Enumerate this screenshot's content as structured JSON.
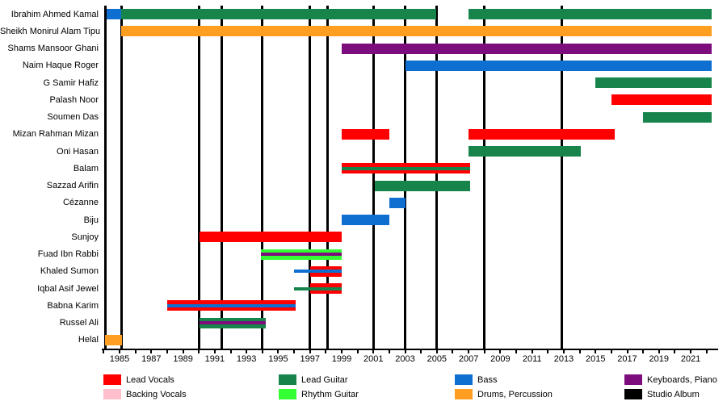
{
  "chart_data": {
    "type": "timeline",
    "title": "Band members timeline (Gantt-style, Wikipedia EasyTimeline format)",
    "x_axis": {
      "start_year": 1984,
      "end_year": 2022.5,
      "minor_tick_interval_years": 1,
      "minor_tick_first": 1984,
      "minor_tick_last": 2022,
      "label_first": 1985,
      "label_last": 2021,
      "label_interval_years": 2,
      "tick_labels": [
        "1985",
        "1987",
        "1989",
        "1991",
        "1993",
        "1995",
        "1997",
        "1999",
        "2001",
        "2003",
        "2005",
        "2007",
        "2009",
        "2011",
        "2013",
        "2015",
        "2017",
        "2019",
        "2021"
      ]
    },
    "colors": {
      "Lead Vocals": "#ff0000",
      "Backing Vocals": "#ffc0cb",
      "Lead Guitar": "#17854b",
      "Rhythm Guitar": "#33ff33",
      "Bass": "#0e6fd0",
      "Drums, Percussion": "#ff9e20",
      "Keyboards, Piano": "#7d0c7d",
      "Studio Album": "#000000"
    },
    "rows": [
      {
        "name": "Ibrahim Ahmed Kamal",
        "segments": [
          {
            "main": "Bass",
            "start": 1984.2,
            "end": 1985.1
          },
          {
            "main": "Lead Guitar",
            "start": 1985.1,
            "end": 2004.95
          },
          {
            "main": "Lead Guitar",
            "start": 2007.0,
            "end": 2022.3
          }
        ]
      },
      {
        "name": "Sheikh Monirul Alam Tipu",
        "segments": [
          {
            "main": "Drums, Percussion",
            "start": 1985.1,
            "end": 2022.3
          }
        ]
      },
      {
        "name": "Shams Mansoor Ghani",
        "segments": [
          {
            "main": "Keyboards, Piano",
            "start": 1999.0,
            "end": 2022.3
          }
        ]
      },
      {
        "name": "Naim Haque Roger",
        "segments": [
          {
            "main": "Bass",
            "start": 2003.0,
            "end": 2022.3
          }
        ]
      },
      {
        "name": "G Samir Hafiz",
        "segments": [
          {
            "main": "Lead Guitar",
            "start": 2015.0,
            "end": 2022.3
          }
        ]
      },
      {
        "name": "Palash Noor",
        "segments": [
          {
            "main": "Lead Vocals",
            "start": 2016.0,
            "end": 2022.3
          }
        ]
      },
      {
        "name": "Soumen Das",
        "segments": [
          {
            "main": "Lead Guitar",
            "start": 2018.0,
            "end": 2022.3
          }
        ]
      },
      {
        "name": "Mizan Rahman Mizan",
        "segments": [
          {
            "main": "Lead Vocals",
            "start": 1999.0,
            "end": 2002.0
          },
          {
            "main": "Lead Vocals",
            "start": 2007.0,
            "end": 2016.2
          }
        ]
      },
      {
        "name": "Oni Hasan",
        "segments": [
          {
            "main": "Lead Guitar",
            "start": 2007.0,
            "end": 2014.05
          }
        ]
      },
      {
        "name": "Balam",
        "segments": [
          {
            "main": "Lead Vocals",
            "stripe": "Lead Guitar",
            "start": 1999.0,
            "end": 2007.1
          }
        ]
      },
      {
        "name": "Sazzad Arifin",
        "segments": [
          {
            "main": "Lead Guitar",
            "start": 2001.1,
            "end": 2007.1
          }
        ]
      },
      {
        "name": "Cézanne",
        "segments": [
          {
            "main": "Bass",
            "start": 2002.0,
            "end": 2003.0
          }
        ]
      },
      {
        "name": "Biju",
        "segments": [
          {
            "main": "Bass",
            "start": 1999.0,
            "end": 2002.0
          }
        ]
      },
      {
        "name": "Sunjoy",
        "segments": [
          {
            "main": "Lead Vocals",
            "start": 1990.05,
            "end": 1999.0
          }
        ]
      },
      {
        "name": "Fuad Ibn Rabbi",
        "segments": [
          {
            "main": "Rhythm Guitar",
            "stripe": "Keyboards, Piano",
            "start": 1993.9,
            "end": 1999.0
          }
        ]
      },
      {
        "name": "Khaled Sumon",
        "segments": [
          {
            "main": "Bass",
            "thin": true,
            "start": 1996.0,
            "end": 1997.0
          },
          {
            "main": "Lead Vocals",
            "stripe": "Bass",
            "start": 1997.0,
            "end": 1999.0
          }
        ]
      },
      {
        "name": "Iqbal Asif Jewel",
        "segments": [
          {
            "main": "Lead Guitar",
            "thin": true,
            "start": 1996.0,
            "end": 1997.0
          },
          {
            "main": "Lead Vocals",
            "stripe": "Lead Guitar",
            "start": 1997.0,
            "end": 1999.0
          }
        ]
      },
      {
        "name": "Babna Karim",
        "segments": [
          {
            "main": "Lead Vocals",
            "stripe": "Bass",
            "start": 1988.0,
            "end": 1996.1
          }
        ]
      },
      {
        "name": "Russel Ali",
        "segments": [
          {
            "main": "Lead Guitar",
            "stripe": "Keyboards, Piano",
            "start": 1990.05,
            "end": 1994.2
          }
        ]
      },
      {
        "name": "Helal",
        "segments": [
          {
            "main": "Drums, Percussion",
            "start": 1984.1,
            "end": 1985.15
          }
        ]
      }
    ],
    "album_lines_years": [
      1984.1,
      1985.15,
      1990.0,
      1991.45,
      1994.0,
      1997.0,
      1998.1,
      2001.0,
      2003.0,
      2005.0,
      2008.0,
      2012.9
    ],
    "legend": {
      "rows": [
        [
          {
            "label": "Lead Vocals"
          },
          {
            "label": "Lead Guitar"
          },
          {
            "label": "Bass"
          },
          {
            "label": "Keyboards, Piano"
          }
        ],
        [
          {
            "label": "Backing Vocals"
          },
          {
            "label": "Rhythm Guitar"
          },
          {
            "label": "Drums, Percussion"
          },
          {
            "label": "Studio Album"
          }
        ]
      ]
    }
  }
}
